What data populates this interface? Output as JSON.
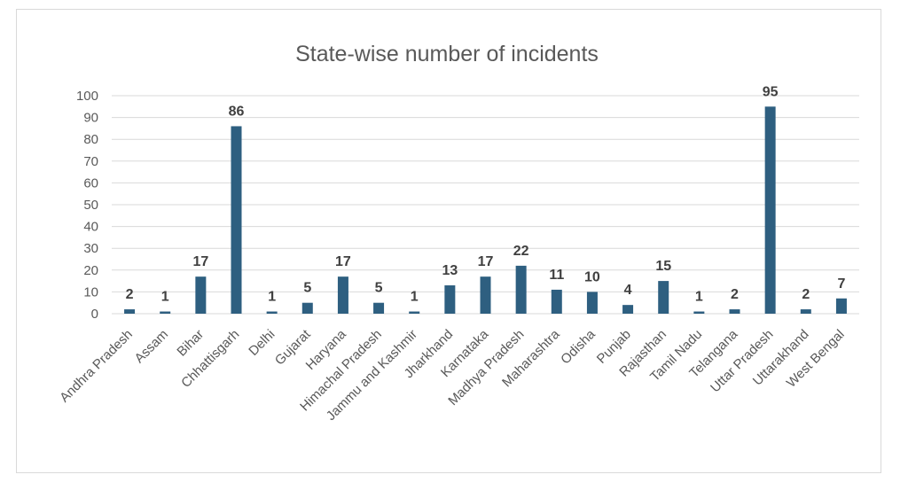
{
  "chart_data": {
    "type": "bar",
    "title": "State-wise number of incidents",
    "xlabel": "",
    "ylabel": "",
    "categories": [
      "Andhra Pradesh",
      "Assam",
      "Bihar",
      "Chhattisgarh",
      "Delhi",
      "Gujarat",
      "Haryana",
      "Himachal Pradesh",
      "Jammu and Kashmir",
      "Jharkhand",
      "Karnataka",
      "Madhya Pradesh",
      "Maharashtra",
      "Odisha",
      "Punjab",
      "Rajasthan",
      "Tamil Nadu",
      "Telangana",
      "Uttar Pradesh",
      "Uttarakhand",
      "West Bengal"
    ],
    "values": [
      2,
      1,
      17,
      86,
      1,
      5,
      17,
      5,
      1,
      13,
      17,
      22,
      11,
      10,
      4,
      15,
      1,
      2,
      95,
      2,
      7
    ],
    "yticks": [
      "0",
      "10",
      "20",
      "30",
      "40",
      "50",
      "60",
      "70",
      "80",
      "90",
      "100"
    ],
    "ylim": [
      0,
      100
    ],
    "grid": true,
    "legend": "none",
    "colors": {
      "bar": "#2e5f80",
      "grid": "#d9d9d9",
      "axis_text": "#595959",
      "title": "#595959",
      "data_label": "#404040"
    }
  }
}
